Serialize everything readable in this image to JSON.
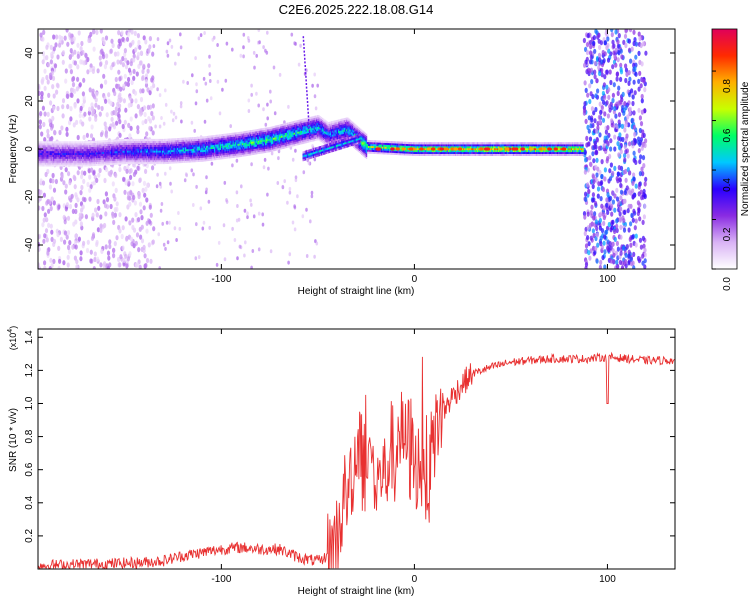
{
  "chart_data": [
    {
      "type": "heatmap",
      "title": "C2E6.2025.222.18.08.G14",
      "xlabel": "Height of straight line (km)",
      "ylabel": "Frequency (Hz)",
      "xlim": [
        -195,
        135
      ],
      "ylim": [
        -50,
        50
      ],
      "x_ticks": [
        -100,
        0,
        100
      ],
      "y_ticks": [
        40,
        20,
        0,
        -20,
        -40
      ],
      "grid": false,
      "colorbar": {
        "label": "Normalized spectral amplitude",
        "range": [
          0.0,
          0.97
        ],
        "ticks": [
          "0.0",
          "0.2",
          "0.4",
          "0.6",
          "0.8"
        ],
        "colors": [
          "#ffffff",
          "#d9b3f5",
          "#8a2be2",
          "#2a00ff",
          "#00c8ff",
          "#00ff66",
          "#c8ff00",
          "#ffb000",
          "#ff2a00",
          "#e0005a"
        ]
      },
      "trace": {
        "x": [
          -195,
          -170,
          -150,
          -130,
          -110,
          -90,
          -75,
          -60,
          -50,
          -45,
          -35,
          -25,
          0,
          50,
          85
        ],
        "y": [
          -2,
          -2,
          -1,
          -1,
          0,
          2,
          4,
          7,
          9,
          6,
          8,
          1,
          0,
          0,
          0
        ],
        "amp": [
          0.3,
          0.3,
          0.35,
          0.4,
          0.45,
          0.5,
          0.55,
          0.5,
          0.45,
          0.4,
          0.45,
          0.6,
          0.7,
          0.75,
          0.7
        ]
      },
      "broadband_regions": [
        {
          "x": [
            -195,
            -135
          ],
          "amp": 0.15
        },
        {
          "x": [
            88,
            115
          ],
          "amp": 0.35
        },
        {
          "x": [
            116,
            120
          ],
          "amp": 0.3
        }
      ]
    },
    {
      "type": "line",
      "title": "",
      "xlabel": "Height of straight line (km)",
      "ylabel": "SNR (10 * v/v)",
      "y_scale_label": "(x10",
      "y_scale_exp": "4",
      "xlim": [
        -195,
        135
      ],
      "ylim": [
        0,
        1.45
      ],
      "x_ticks": [
        -100,
        0,
        100
      ],
      "y_ticks": [
        0.2,
        0.4,
        0.6,
        0.8,
        1.0,
        1.2,
        1.4
      ],
      "y_tick_labels": [
        "0.2",
        "0.4",
        "0.6",
        "0.8",
        "1.0",
        "1.2",
        "1.4"
      ],
      "line_color": "#e83030",
      "series": [
        {
          "x": [
            -195,
            -180,
            -170,
            -160,
            -150,
            -140,
            -130,
            -120,
            -110,
            -100,
            -90,
            -80,
            -70,
            -60,
            -52,
            -48,
            -44,
            -40,
            -36,
            -33,
            -30,
            -28,
            -25,
            -22,
            -20,
            -17,
            -15,
            -12,
            -10,
            -8,
            -5,
            -2,
            0,
            3,
            6,
            9,
            12,
            15,
            20,
            25,
            30,
            40,
            50,
            60,
            70,
            80,
            90,
            98,
            100,
            102,
            110,
            120,
            130,
            135
          ],
          "y": [
            0.02,
            0.025,
            0.03,
            0.03,
            0.035,
            0.04,
            0.05,
            0.08,
            0.1,
            0.12,
            0.13,
            0.12,
            0.12,
            0.07,
            0.05,
            0.05,
            0.1,
            0.2,
            0.45,
            0.55,
            0.7,
            0.85,
            0.55,
            0.75,
            0.45,
            0.6,
            0.55,
            0.75,
            0.7,
            0.85,
            0.75,
            0.8,
            0.6,
            0.65,
            0.5,
            0.55,
            0.9,
            0.95,
            1.05,
            1.12,
            1.18,
            1.22,
            1.25,
            1.26,
            1.27,
            1.27,
            1.27,
            1.28,
            1.26,
            1.28,
            1.27,
            1.26,
            1.26,
            1.26
          ]
        }
      ]
    }
  ]
}
